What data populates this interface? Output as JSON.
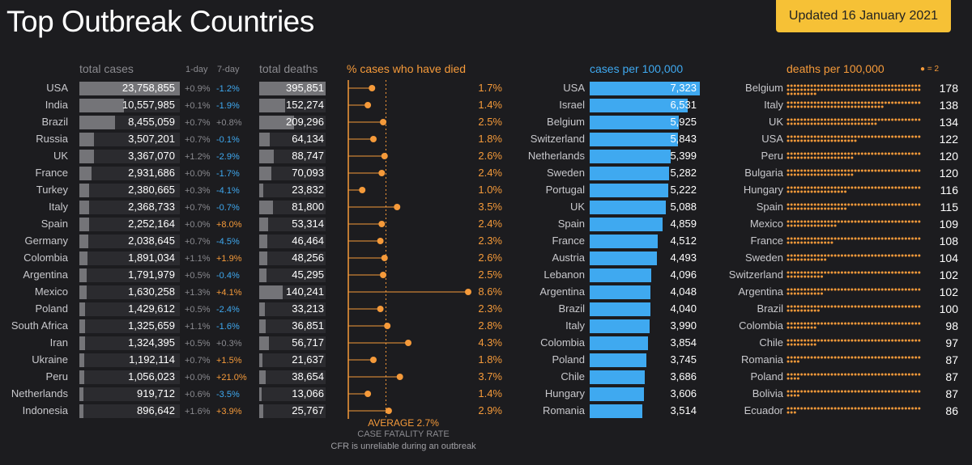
{
  "title": "Top Outbreak Countries",
  "updated": "Updated 16 January 2021",
  "headers": {
    "total_cases": "total cases",
    "one_day": "1-day",
    "seven_day": "7-day",
    "total_deaths": "total deaths",
    "cfr": "% cases who have died",
    "cases_per_100k": "cases per 100,000",
    "deaths_per_100k": "deaths per 100,000",
    "dot_legend": "= 2"
  },
  "cfr_notes": {
    "average": "AVERAGE 2.7%",
    "label": "CASE FATALITY RATE",
    "caveat": "CFR is unreliable during an outbreak"
  },
  "colors": {
    "accent_orange": "#f59a3a",
    "accent_blue": "#3fa9f0",
    "badge": "#f6c136",
    "bar_gray": "#747478",
    "background": "#1c1c1f"
  },
  "chart_data": [
    {
      "type": "bar",
      "title": "total cases",
      "categories": [
        "USA",
        "India",
        "Brazil",
        "Russia",
        "UK",
        "France",
        "Turkey",
        "Italy",
        "Spain",
        "Germany",
        "Colombia",
        "Argentina",
        "Mexico",
        "Poland",
        "South Africa",
        "Iran",
        "Ukraine",
        "Peru",
        "Netherlands",
        "Indonesia"
      ],
      "values": [
        23758855,
        10557985,
        8455059,
        3507201,
        3367070,
        2931686,
        2380665,
        2368733,
        2252164,
        2038645,
        1891034,
        1791979,
        1630258,
        1429612,
        1325659,
        1324395,
        1192114,
        1056023,
        919712,
        896642
      ],
      "labels": [
        "23,758,855",
        "10,557,985",
        "8,455,059",
        "3,507,201",
        "3,367,070",
        "2,931,686",
        "2,380,665",
        "2,368,733",
        "2,252,164",
        "2,038,645",
        "1,891,034",
        "1,791,979",
        "1,630,258",
        "1,429,612",
        "1,325,659",
        "1,324,395",
        "1,192,114",
        "1,056,023",
        "919,712",
        "896,642"
      ],
      "one_day": [
        "+0.9%",
        "+0.1%",
        "+0.7%",
        "+0.7%",
        "+1.2%",
        "+0.0%",
        "+0.3%",
        "+0.7%",
        "+0.0%",
        "+0.7%",
        "+1.1%",
        "+0.5%",
        "+1.3%",
        "+0.5%",
        "+1.1%",
        "+0.5%",
        "+0.7%",
        "+0.0%",
        "+0.6%",
        "+1.6%"
      ],
      "seven_day": [
        "-1.2%",
        "-1.9%",
        "+0.8%",
        "-0.1%",
        "-2.9%",
        "-1.7%",
        "-4.1%",
        "-0.7%",
        "+8.0%",
        "-4.5%",
        "+1.9%",
        "-0.4%",
        "+4.1%",
        "-2.4%",
        "-1.6%",
        "+0.3%",
        "+1.5%",
        "+21.0%",
        "-3.5%",
        "+3.9%"
      ]
    },
    {
      "type": "bar",
      "title": "total deaths",
      "categories": [
        "USA",
        "India",
        "Brazil",
        "Russia",
        "UK",
        "France",
        "Turkey",
        "Italy",
        "Spain",
        "Germany",
        "Colombia",
        "Argentina",
        "Mexico",
        "Poland",
        "South Africa",
        "Iran",
        "Ukraine",
        "Peru",
        "Netherlands",
        "Indonesia"
      ],
      "values": [
        395851,
        152274,
        209296,
        64134,
        88747,
        70093,
        23832,
        81800,
        53314,
        46464,
        48256,
        45295,
        140241,
        33213,
        36851,
        56717,
        21637,
        38654,
        13066,
        25767
      ],
      "labels": [
        "395,851",
        "152,274",
        "209,296",
        "64,134",
        "88,747",
        "70,093",
        "23,832",
        "81,800",
        "53,314",
        "46,464",
        "48,256",
        "45,295",
        "140,241",
        "33,213",
        "36,851",
        "56,717",
        "21,637",
        "38,654",
        "13,066",
        "25,767"
      ]
    },
    {
      "type": "scatter",
      "title": "% cases who have died",
      "categories": [
        "USA",
        "India",
        "Brazil",
        "Russia",
        "UK",
        "France",
        "Turkey",
        "Italy",
        "Spain",
        "Germany",
        "Colombia",
        "Argentina",
        "Mexico",
        "Poland",
        "South Africa",
        "Iran",
        "Ukraine",
        "Peru",
        "Netherlands",
        "Indonesia"
      ],
      "values": [
        1.7,
        1.4,
        2.5,
        1.8,
        2.6,
        2.4,
        1.0,
        3.5,
        2.4,
        2.3,
        2.6,
        2.5,
        8.6,
        2.3,
        2.8,
        4.3,
        1.8,
        3.7,
        1.4,
        2.9
      ],
      "labels": [
        "1.7%",
        "1.4%",
        "2.5%",
        "1.8%",
        "2.6%",
        "2.4%",
        "1.0%",
        "3.5%",
        "2.4%",
        "2.3%",
        "2.6%",
        "2.5%",
        "8.6%",
        "2.3%",
        "2.8%",
        "4.3%",
        "1.8%",
        "3.7%",
        "1.4%",
        "2.9%"
      ],
      "average": 2.7,
      "xlim": [
        0,
        8.6
      ]
    },
    {
      "type": "bar",
      "title": "cases per 100,000",
      "categories": [
        "USA",
        "Israel",
        "Belgium",
        "Switzerland",
        "Netherlands",
        "Sweden",
        "Portugal",
        "UK",
        "Spain",
        "France",
        "Austria",
        "Lebanon",
        "Argentina",
        "Brazil",
        "Italy",
        "Colombia",
        "Poland",
        "Chile",
        "Hungary",
        "Romania"
      ],
      "values": [
        7323,
        6531,
        5925,
        5843,
        5399,
        5282,
        5222,
        5088,
        4859,
        4512,
        4493,
        4096,
        4048,
        4040,
        3990,
        3854,
        3745,
        3686,
        3606,
        3514
      ],
      "labels": [
        "7,323",
        "6,531",
        "5,925",
        "5,843",
        "5,399",
        "5,282",
        "5,222",
        "5,088",
        "4,859",
        "4,512",
        "4,493",
        "4,096",
        "4,048",
        "4,040",
        "3,990",
        "3,854",
        "3,745",
        "3,686",
        "3,606",
        "3,514"
      ]
    },
    {
      "type": "scatter",
      "title": "deaths per 100,000",
      "unit_per_dot": 2,
      "categories": [
        "Belgium",
        "Italy",
        "UK",
        "USA",
        "Peru",
        "Bulgaria",
        "Hungary",
        "Spain",
        "Mexico",
        "France",
        "Sweden",
        "Switzerland",
        "Argentina",
        "Brazil",
        "Colombia",
        "Chile",
        "Romania",
        "Poland",
        "Bolivia",
        "Ecuador"
      ],
      "values": [
        178,
        138,
        134,
        122,
        120,
        120,
        116,
        115,
        109,
        108,
        104,
        102,
        102,
        100,
        98,
        97,
        87,
        87,
        87,
        86
      ],
      "labels": [
        "178",
        "138",
        "134",
        "122",
        "120",
        "120",
        "116",
        "115",
        "109",
        "108",
        "104",
        "102",
        "102",
        "100",
        "98",
        "97",
        "87",
        "87",
        "87",
        "86"
      ]
    }
  ]
}
